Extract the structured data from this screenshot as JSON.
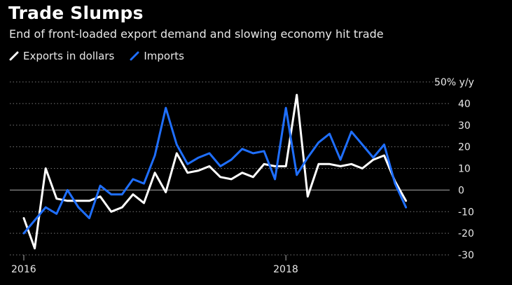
{
  "title": "Trade Slumps",
  "subtitle": "End of front-loaded export demand and slowing economy hit trade",
  "chart_data": {
    "type": "line",
    "title": "Trade Slumps",
    "subtitle": "End of front-loaded export demand and slowing economy hit trade",
    "ylabel": "% y/y",
    "ylim": [
      -30,
      50
    ],
    "yticks": [
      -30,
      -20,
      -10,
      0,
      10,
      20,
      30,
      40,
      50
    ],
    "ytick_labels": [
      "-30",
      "-20",
      "-10",
      "0",
      "10",
      "20",
      "30",
      "40",
      "50% y/y"
    ],
    "xticks": [
      2016,
      2018
    ],
    "xtick_labels": [
      "2016",
      "2018"
    ],
    "x_range": [
      2016.0,
      2019.25
    ],
    "x": [
      2016.0,
      2016.0833,
      2016.1667,
      2016.25,
      2016.3333,
      2016.4167,
      2016.5,
      2016.5833,
      2016.6667,
      2016.75,
      2016.8333,
      2016.9167,
      2017.0,
      2017.0833,
      2017.1667,
      2017.25,
      2017.3333,
      2017.4167,
      2017.5,
      2017.5833,
      2017.6667,
      2017.75,
      2017.8333,
      2017.9167,
      2018.0,
      2018.0833,
      2018.1667,
      2018.25,
      2018.3333,
      2018.4167,
      2018.5,
      2018.5833,
      2018.6667,
      2018.75,
      2018.8333,
      2018.9167,
      2019.0
    ],
    "series": [
      {
        "name": "Exports in dollars",
        "color": "#ffffff",
        "values": [
          -13,
          -27,
          10,
          -4,
          -5,
          -5,
          -5,
          -3,
          -10,
          -8,
          -2,
          -6,
          8,
          -1,
          17,
          8,
          9,
          11,
          6,
          5,
          8,
          6,
          12,
          11,
          11,
          44,
          -3,
          12,
          12,
          11,
          12,
          10,
          14,
          16,
          4,
          -5,
          null
        ]
      },
      {
        "name": "Imports",
        "color": "#1f6fff",
        "values": [
          -20,
          -14,
          -8,
          -11,
          0,
          -8,
          -13,
          2,
          -2,
          -2,
          5,
          3,
          16,
          38,
          21,
          12,
          15,
          17,
          11,
          14,
          19,
          17,
          18,
          5,
          38,
          7,
          15,
          22,
          26,
          14,
          27,
          21,
          15,
          21,
          3,
          -8,
          null
        ]
      }
    ],
    "legend_position": "top-left",
    "grid": true
  }
}
